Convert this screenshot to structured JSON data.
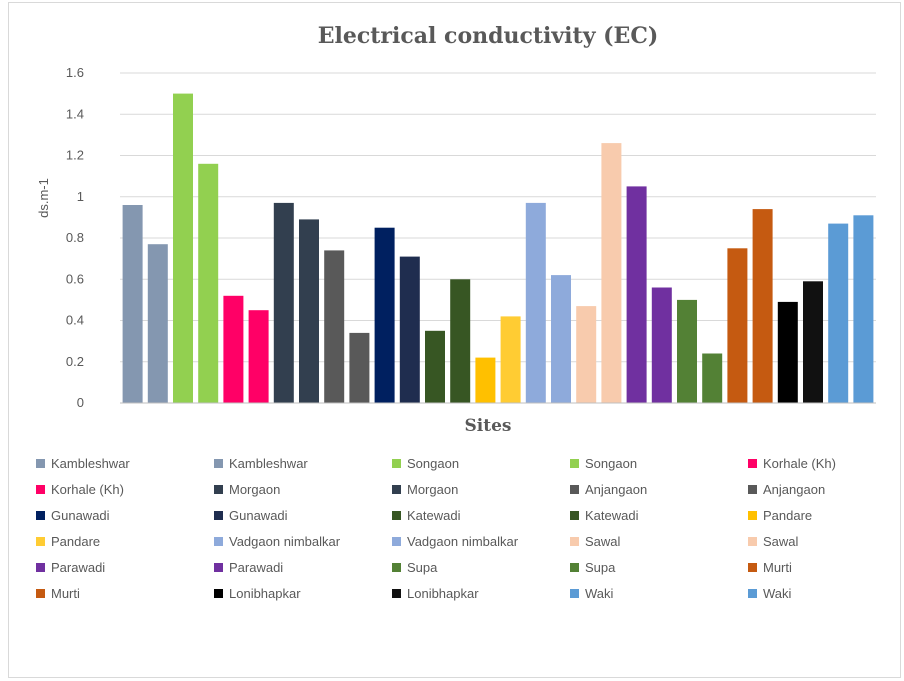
{
  "chart_data": {
    "type": "bar",
    "title": "Electrical conductivity (EC)",
    "xlabel": "Sites",
    "ylabel": "ds.m-1",
    "ylim": [
      0,
      1.6
    ],
    "yticks": [
      "0",
      "0.2",
      "0.4",
      "0.6",
      "0.8",
      "1",
      "1.2",
      "1.4",
      "1.6"
    ],
    "grid": true,
    "legend_position": "bottom",
    "series": [
      {
        "name": "Kambleshwar",
        "value": 0.96,
        "color": "#8497b0"
      },
      {
        "name": "Kambleshwar",
        "value": 0.77,
        "color": "#8497b0"
      },
      {
        "name": "Songaon",
        "value": 1.5,
        "color": "#92d050"
      },
      {
        "name": "Songaon",
        "value": 1.16,
        "color": "#92d050"
      },
      {
        "name": "Korhale (Kh)",
        "value": 0.52,
        "color": "#ff0066"
      },
      {
        "name": "Korhale (Kh)",
        "value": 0.45,
        "color": "#ff0066"
      },
      {
        "name": "Morgaon",
        "value": 0.97,
        "color": "#323f4f"
      },
      {
        "name": "Morgaon",
        "value": 0.89,
        "color": "#323f4f"
      },
      {
        "name": "Anjangaon",
        "value": 0.74,
        "color": "#595959"
      },
      {
        "name": "Anjangaon",
        "value": 0.34,
        "color": "#595959"
      },
      {
        "name": "Gunawadi",
        "value": 0.85,
        "color": "#002060"
      },
      {
        "name": "Gunawadi",
        "value": 0.71,
        "color": "#1f2d4f"
      },
      {
        "name": "Katewadi",
        "value": 0.35,
        "color": "#375623"
      },
      {
        "name": "Katewadi",
        "value": 0.6,
        "color": "#375623"
      },
      {
        "name": "Pandare",
        "value": 0.22,
        "color": "#ffc000"
      },
      {
        "name": "Pandare",
        "value": 0.42,
        "color": "#ffcc33"
      },
      {
        "name": "Vadgaon nimbalkar",
        "value": 0.97,
        "color": "#8eaadb"
      },
      {
        "name": "Vadgaon nimbalkar",
        "value": 0.62,
        "color": "#8eaadb"
      },
      {
        "name": "Sawal",
        "value": 0.47,
        "color": "#f8cbad"
      },
      {
        "name": "Sawal",
        "value": 1.26,
        "color": "#f8cbad"
      },
      {
        "name": "Parawadi",
        "value": 1.05,
        "color": "#7030a0"
      },
      {
        "name": "Parawadi",
        "value": 0.56,
        "color": "#7030a0"
      },
      {
        "name": "Supa",
        "value": 0.5,
        "color": "#538135"
      },
      {
        "name": "Supa",
        "value": 0.24,
        "color": "#538135"
      },
      {
        "name": "Murti",
        "value": 0.75,
        "color": "#c55a11"
      },
      {
        "name": "Murti",
        "value": 0.94,
        "color": "#c55a11"
      },
      {
        "name": "Lonibhapkar",
        "value": 0.49,
        "color": "#000000"
      },
      {
        "name": "Lonibhapkar",
        "value": 0.59,
        "color": "#111111"
      },
      {
        "name": "Waki",
        "value": 0.87,
        "color": "#5b9bd5"
      },
      {
        "name": "Waki",
        "value": 0.91,
        "color": "#5b9bd5"
      }
    ]
  }
}
